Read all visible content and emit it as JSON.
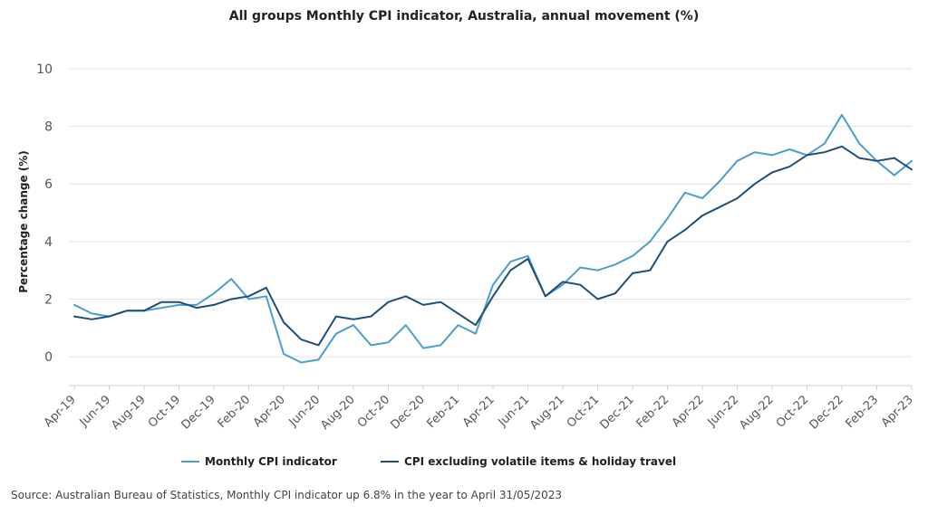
{
  "chart_data": {
    "type": "line",
    "title": "All groups Monthly CPI indicator, Australia, annual movement (%)",
    "ylabel": "Percentage change (%)",
    "xlabel": "",
    "ylim": [
      -1,
      10.5
    ],
    "yticks": [
      0,
      2,
      4,
      6,
      8,
      10
    ],
    "x": [
      "Apr-19",
      "May-19",
      "Jun-19",
      "Jul-19",
      "Aug-19",
      "Sep-19",
      "Oct-19",
      "Nov-19",
      "Dec-19",
      "Jan-20",
      "Feb-20",
      "Mar-20",
      "Apr-20",
      "May-20",
      "Jun-20",
      "Jul-20",
      "Aug-20",
      "Sep-20",
      "Oct-20",
      "Nov-20",
      "Dec-20",
      "Jan-21",
      "Feb-21",
      "Mar-21",
      "Apr-21",
      "May-21",
      "Jun-21",
      "Jul-21",
      "Aug-21",
      "Sep-21",
      "Oct-21",
      "Nov-21",
      "Dec-21",
      "Jan-22",
      "Feb-22",
      "Mar-22",
      "Apr-22",
      "May-22",
      "Jun-22",
      "Jul-22",
      "Aug-22",
      "Sep-22",
      "Oct-22",
      "Nov-22",
      "Dec-22",
      "Jan-23",
      "Feb-23",
      "Mar-23",
      "Apr-23"
    ],
    "x_tick_labels": [
      "Apr-19",
      "Jun-19",
      "Aug-19",
      "Oct-19",
      "Dec-19",
      "Feb-20",
      "Apr-20",
      "Jun-20",
      "Aug-20",
      "Oct-20",
      "Dec-20",
      "Feb-21",
      "Apr-21",
      "Jun-21",
      "Aug-21",
      "Oct-21",
      "Dec-21",
      "Feb-22",
      "Apr-22",
      "Jun-22",
      "Aug-22",
      "Oct-22",
      "Dec-22",
      "Feb-23",
      "Apr-23"
    ],
    "series": [
      {
        "name": "Monthly CPI indicator",
        "color": "#4a9fcc",
        "values": [
          1.8,
          1.5,
          1.4,
          1.6,
          1.6,
          1.7,
          1.8,
          1.8,
          2.2,
          2.7,
          2.0,
          2.1,
          0.1,
          -0.2,
          -0.1,
          0.8,
          1.1,
          0.4,
          0.5,
          1.1,
          0.3,
          0.4,
          1.1,
          0.8,
          2.5,
          3.3,
          3.5,
          2.1,
          2.5,
          3.1,
          3.0,
          3.2,
          3.5,
          4.0,
          4.8,
          5.7,
          5.5,
          6.1,
          6.8,
          7.1,
          7.0,
          7.2,
          7.0,
          7.4,
          8.4,
          7.4,
          6.8,
          6.3,
          6.8
        ]
      },
      {
        "name": "CPI excluding volatile items & holiday travel",
        "color": "#1f4e79",
        "values": [
          1.4,
          1.3,
          1.4,
          1.6,
          1.6,
          1.9,
          1.9,
          1.7,
          1.8,
          2.0,
          2.1,
          2.4,
          1.2,
          0.6,
          0.4,
          1.4,
          1.3,
          1.4,
          1.9,
          2.1,
          1.8,
          1.9,
          1.5,
          1.1,
          2.1,
          3.0,
          3.4,
          2.1,
          2.6,
          2.5,
          2.0,
          2.2,
          2.9,
          3.0,
          4.0,
          4.4,
          4.9,
          5.2,
          5.5,
          6.0,
          6.4,
          6.6,
          7.0,
          7.1,
          7.3,
          6.9,
          6.8,
          6.9,
          6.5
        ]
      }
    ],
    "grid": true,
    "legend_position": "bottom"
  },
  "source_note": "Source: Australian Bureau of Statistics, Monthly CPI indicator up 6.8% in the year to April 31/05/2023"
}
